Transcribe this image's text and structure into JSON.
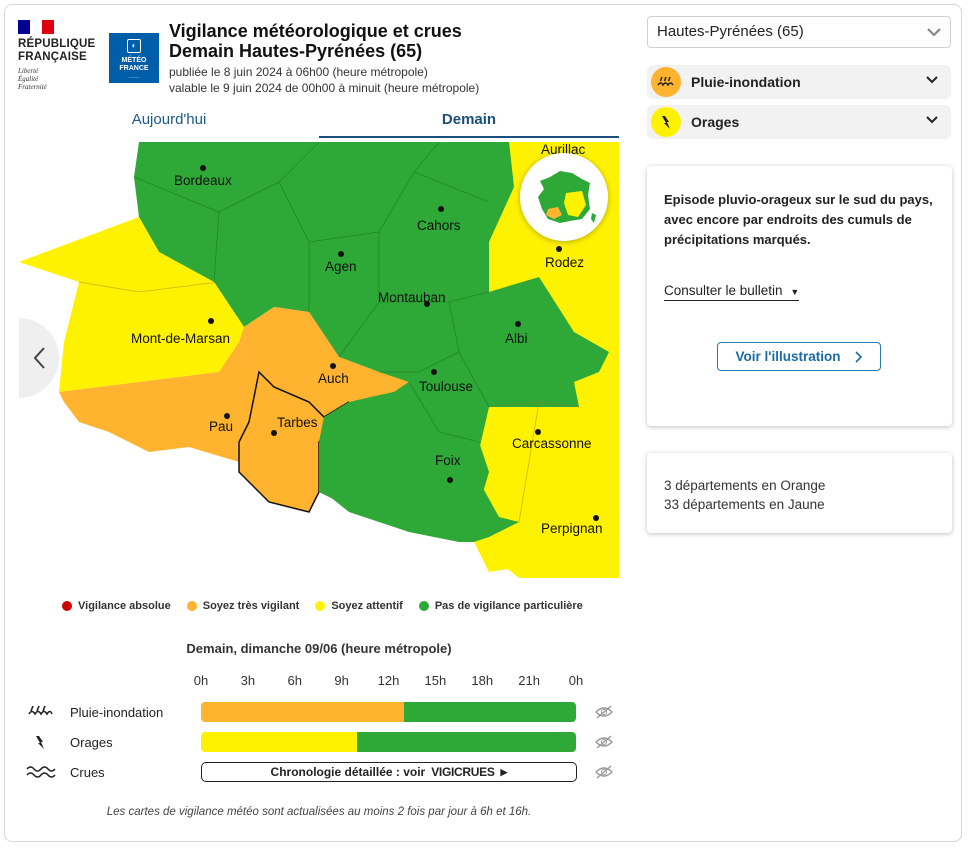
{
  "header": {
    "republique": "RÉPUBLIQUE\nFRANÇAISE",
    "motto": "Liberté\nÉgalité\nFraternité",
    "meteo_logo": "MÉTÉO\nFRANCE",
    "title_line1": "Vigilance météorologique et crues",
    "title_line2": "Demain Hautes-Pyrénées (65)",
    "published": "publiée le 8 juin 2024 à 06h00 (heure métropole)",
    "valid": "valable le 9 juin 2024 de 00h00 à minuit (heure métropole)"
  },
  "tabs": {
    "today": "Aujourd'hui",
    "tomorrow": "Demain"
  },
  "map": {
    "cities": {
      "bordeaux": "Bordeaux",
      "aurillac": "Aurillac",
      "cahors": "Cahors",
      "agen": "Agen",
      "rodez": "Rodez",
      "montauban": "Montauban",
      "mont_de_marsan": "Mont-de-Marsan",
      "albi": "Albi",
      "auch": "Auch",
      "toulouse": "Toulouse",
      "pau": "Pau",
      "tarbes": "Tarbes",
      "carcassonne": "Carcassonne",
      "foix": "Foix",
      "perpignan": "Perpignan"
    }
  },
  "legend": {
    "absolute": "Vigilance absolue",
    "orange": "Soyez très vigilant",
    "yellow": "Soyez attentif",
    "green": "Pas de vigilance particulière"
  },
  "colors": {
    "red": "#cc0000",
    "orange": "#ffb32e",
    "yellow": "#fff200",
    "green": "#2ea836",
    "accent": "#1a4f7a"
  },
  "timeline": {
    "title": "Demain, dimanche 09/06 (heure métropole)",
    "hours": [
      "0h",
      "3h",
      "6h",
      "9h",
      "12h",
      "15h",
      "18h",
      "21h",
      "0h"
    ],
    "rows": {
      "rain": {
        "label": "Pluie-inondation",
        "orange_fraction": 0.54
      },
      "storm": {
        "label": "Orages",
        "yellow_fraction": 0.416
      },
      "flood": {
        "label": "Crues",
        "link_text": "Chronologie détaillée : voir",
        "brand": "VIGICRUES"
      }
    },
    "footnote": "Les cartes de vigilance météo sont actualisées au moins 2 fois par jour à 6h et 16h."
  },
  "sidebar": {
    "dept_select": "Hautes-Pyrénées (65)",
    "phenomena": [
      {
        "label": "Pluie-inondation",
        "icon": "rain-flood-icon",
        "color": "#ffb32e"
      },
      {
        "label": "Orages",
        "icon": "lightning-icon",
        "color": "#fff200"
      }
    ],
    "bulletin_text": "Episode pluvio-orageux sur le sud du pays, avec encore par endroits des cumuls de précipitations marqués.",
    "consult_label": "Consulter le bulletin",
    "illustration_label": "Voir l'illustration",
    "count_orange": "3 départements en Orange",
    "count_yellow": "33 départements en Jaune"
  }
}
